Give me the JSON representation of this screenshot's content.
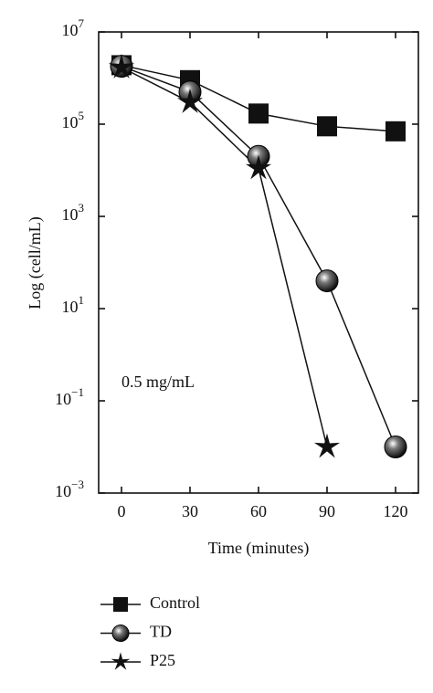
{
  "chart_data": {
    "type": "line",
    "x_label": "Time (minutes)",
    "y_label": "Log (cell/mL)",
    "annotation": "0.5 mg/mL",
    "log_y": true,
    "x": [
      0,
      30,
      60,
      90,
      120
    ],
    "xlim": [
      -10,
      130
    ],
    "xticks": [
      0,
      30,
      60,
      90,
      120
    ],
    "ylim": [
      0.001,
      10000000
    ],
    "yticks": [
      {
        "value": 0.001,
        "label": "10",
        "exponent": "−3"
      },
      {
        "value": 0.1,
        "label": "10",
        "exponent": "−1"
      },
      {
        "value": 10,
        "label": "10",
        "exponent": "1"
      },
      {
        "value": 1000,
        "label": "10",
        "exponent": "3"
      },
      {
        "value": 100000,
        "label": "10",
        "exponent": "5"
      },
      {
        "value": 10000000,
        "label": "10",
        "exponent": "7"
      }
    ],
    "series": [
      {
        "name": "Control",
        "color": "#111111",
        "marker": "square",
        "values": [
          1900000,
          900000,
          170000,
          90000,
          70000
        ]
      },
      {
        "name": "TD",
        "color": "#111111",
        "marker": "sphere",
        "values": [
          1800000,
          500000,
          20000,
          40,
          0.01
        ]
      },
      {
        "name": "P25",
        "color": "#111111",
        "marker": "star",
        "values": [
          1700000,
          300000,
          11000,
          0.01,
          null
        ]
      }
    ]
  }
}
